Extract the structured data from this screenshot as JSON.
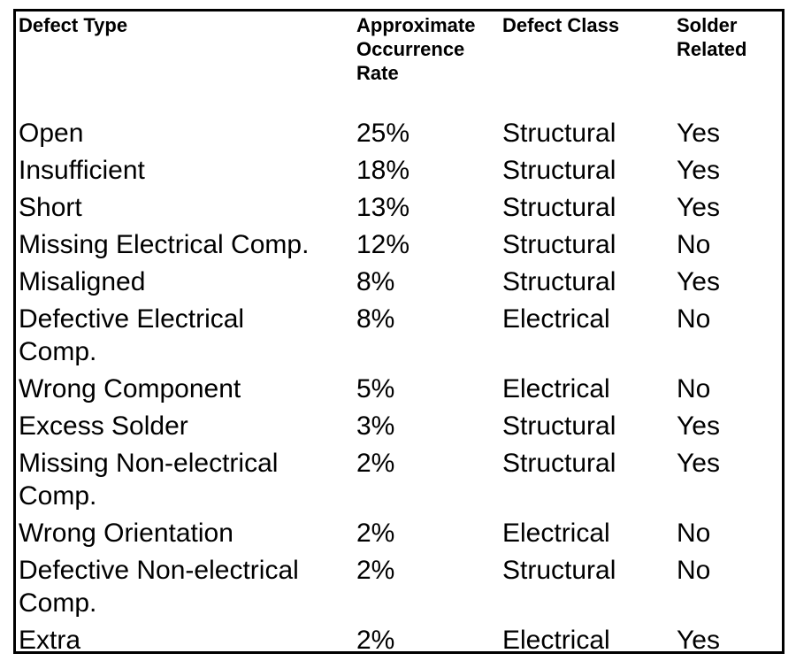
{
  "table": {
    "columns": [
      "Defect Type",
      "Approximate Occurrence Rate",
      "Defect Class",
      "Solder Related"
    ],
    "rows": [
      [
        "Open",
        "25%",
        "Structural",
        "Yes"
      ],
      [
        "Insufficient",
        "18%",
        "Structural",
        "Yes"
      ],
      [
        "Short",
        "13%",
        "Structural",
        "Yes"
      ],
      [
        "Missing Electrical Comp.",
        "12%",
        "Structural",
        "No"
      ],
      [
        "Misaligned",
        "8%",
        "Structural",
        "Yes"
      ],
      [
        "Defective Electrical Comp.",
        "8%",
        "Electrical",
        "No"
      ],
      [
        "Wrong Component",
        "5%",
        "Electrical",
        "No"
      ],
      [
        "Excess Solder",
        "3%",
        "Structural",
        "Yes"
      ],
      [
        "Missing Non-electrical Comp.",
        "2%",
        "Structural",
        "Yes"
      ],
      [
        "Wrong Orientation",
        "2%",
        "Electrical",
        "No"
      ],
      [
        "Defective Non-electrical Comp.",
        "2%",
        "Structural",
        "No"
      ],
      [
        "Extra",
        "2%",
        "Electrical",
        "Yes"
      ]
    ]
  }
}
